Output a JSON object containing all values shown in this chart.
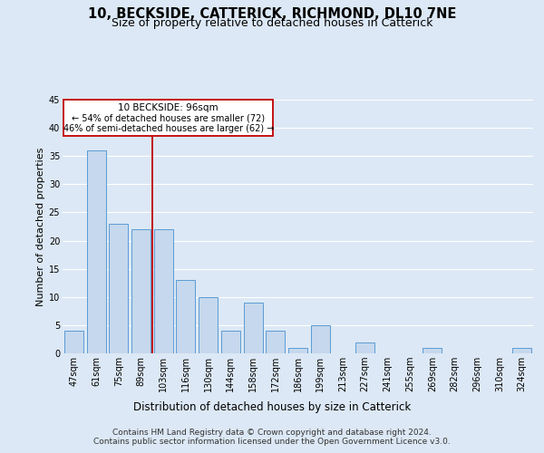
{
  "title": "10, BECKSIDE, CATTERICK, RICHMOND, DL10 7NE",
  "subtitle": "Size of property relative to detached houses in Catterick",
  "xlabel": "Distribution of detached houses by size in Catterick",
  "ylabel": "Number of detached properties",
  "categories": [
    "47sqm",
    "61sqm",
    "75sqm",
    "89sqm",
    "103sqm",
    "116sqm",
    "130sqm",
    "144sqm",
    "158sqm",
    "172sqm",
    "186sqm",
    "199sqm",
    "213sqm",
    "227sqm",
    "241sqm",
    "255sqm",
    "269sqm",
    "282sqm",
    "296sqm",
    "310sqm",
    "324sqm"
  ],
  "values": [
    4,
    36,
    23,
    22,
    22,
    13,
    10,
    4,
    9,
    4,
    1,
    5,
    0,
    2,
    0,
    0,
    1,
    0,
    0,
    0,
    1
  ],
  "bar_color": "#c5d8ed",
  "bar_edge_color": "#5b9bd5",
  "vline_x": 3.5,
  "vline_color": "#c00000",
  "annotation_lines": [
    "10 BECKSIDE: 96sqm",
    "← 54% of detached houses are smaller (72)",
    "46% of semi-detached houses are larger (62) →"
  ],
  "annotation_box_color": "#ffffff",
  "annotation_box_edge_color": "#c00000",
  "ylim": [
    0,
    45
  ],
  "yticks": [
    0,
    5,
    10,
    15,
    20,
    25,
    30,
    35,
    40,
    45
  ],
  "background_color": "#dce8f5",
  "plot_bg_color": "#dce8f5",
  "grid_color": "#ffffff",
  "footer_line1": "Contains HM Land Registry data © Crown copyright and database right 2024.",
  "footer_line2": "Contains public sector information licensed under the Open Government Licence v3.0.",
  "title_fontsize": 10.5,
  "subtitle_fontsize": 9,
  "xlabel_fontsize": 8.5,
  "ylabel_fontsize": 8,
  "tick_fontsize": 7,
  "footer_fontsize": 6.5,
  "ann_fontsize_title": 7.5,
  "ann_fontsize_body": 7
}
